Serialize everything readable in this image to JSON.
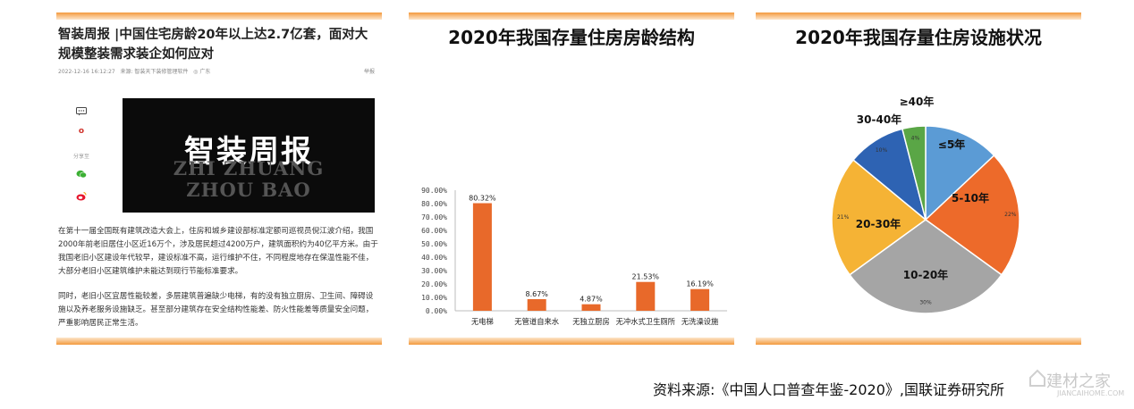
{
  "article": {
    "title": "智装周报 |中国住宅房龄20年以上达2.7亿套，面对大规模整装需求装企如何应对",
    "date": "2022-12-16 16:12:27",
    "source": "来源: 智装天下装修管理软件",
    "location": "广东",
    "report": "举报",
    "share_label": "分享至",
    "cover_title": "智装周报",
    "cover_en_1": "ZHI ZHUANG",
    "cover_en_2": "ZHOU BAO",
    "paragraph_1": "在第十一届全国既有建筑改造大会上，住房和城乡建设部标准定额司巡视员倪江波介绍，我国2000年前老旧居住小区近16万个，涉及居民超过4200万户，建筑面积约为40亿平方米。由于我国老旧小区建设年代较早，建设标准不高，运行维护不住，不同程度地存在保温性能不佳，大部分老旧小区建筑维护未能达到现行节能标准要求。",
    "paragraph_2": "同时，老旧小区宜居性能较差，多层建筑普遍缺少电梯，有的没有独立厨房、卫生间、障碍设施以及养老服务设施缺乏。甚至部分建筑存在安全结构性能差、防火性能差等质量安全问题，严重影响居民正常生活。",
    "icons": [
      "comment-icon",
      "like-icon",
      "wechat-icon",
      "weibo-icon"
    ],
    "accent": "#f39a3e"
  },
  "chart_data": [
    {
      "type": "bar",
      "title": "2020年我国存量住房房龄结构",
      "categories": [
        "无电梯",
        "无管道自来水",
        "无独立厨房",
        "无冲水式卫生厕所",
        "无洗澡设施"
      ],
      "values": [
        80.32,
        8.67,
        4.87,
        21.53,
        16.19
      ],
      "data_labels": [
        "80.32%",
        "8.67%",
        "4.87%",
        "21.53%",
        "16.19%"
      ],
      "ylim": [
        0,
        90
      ],
      "yticks": [
        "0.00%",
        "10.00%",
        "20.00%",
        "30.00%",
        "40.00%",
        "50.00%",
        "60.00%",
        "70.00%",
        "80.00%",
        "90.00%"
      ],
      "color": "#e8692a",
      "grid": false
    },
    {
      "type": "pie",
      "title": "2020年我国存量住房设施状况",
      "categories": [
        "≤5年",
        "5-10年",
        "10-20年",
        "20-30年",
        "30-40年",
        "≥40年"
      ],
      "values": [
        13,
        22,
        30,
        21,
        10,
        4
      ],
      "pct_labels": [
        "13%",
        "22%",
        "30%",
        "21%",
        "10%",
        "4%"
      ],
      "colors": [
        "#5b9bd5",
        "#ed6a2a",
        "#a5a5a5",
        "#f5b335",
        "#2e63b3",
        "#5aa646"
      ]
    }
  ],
  "footer": {
    "source": "资料来源:《中国人口普查年鉴-2020》,国联证券研究所",
    "watermark": "建材之家",
    "watermark_url": "JIANCAIHOME.COM"
  }
}
